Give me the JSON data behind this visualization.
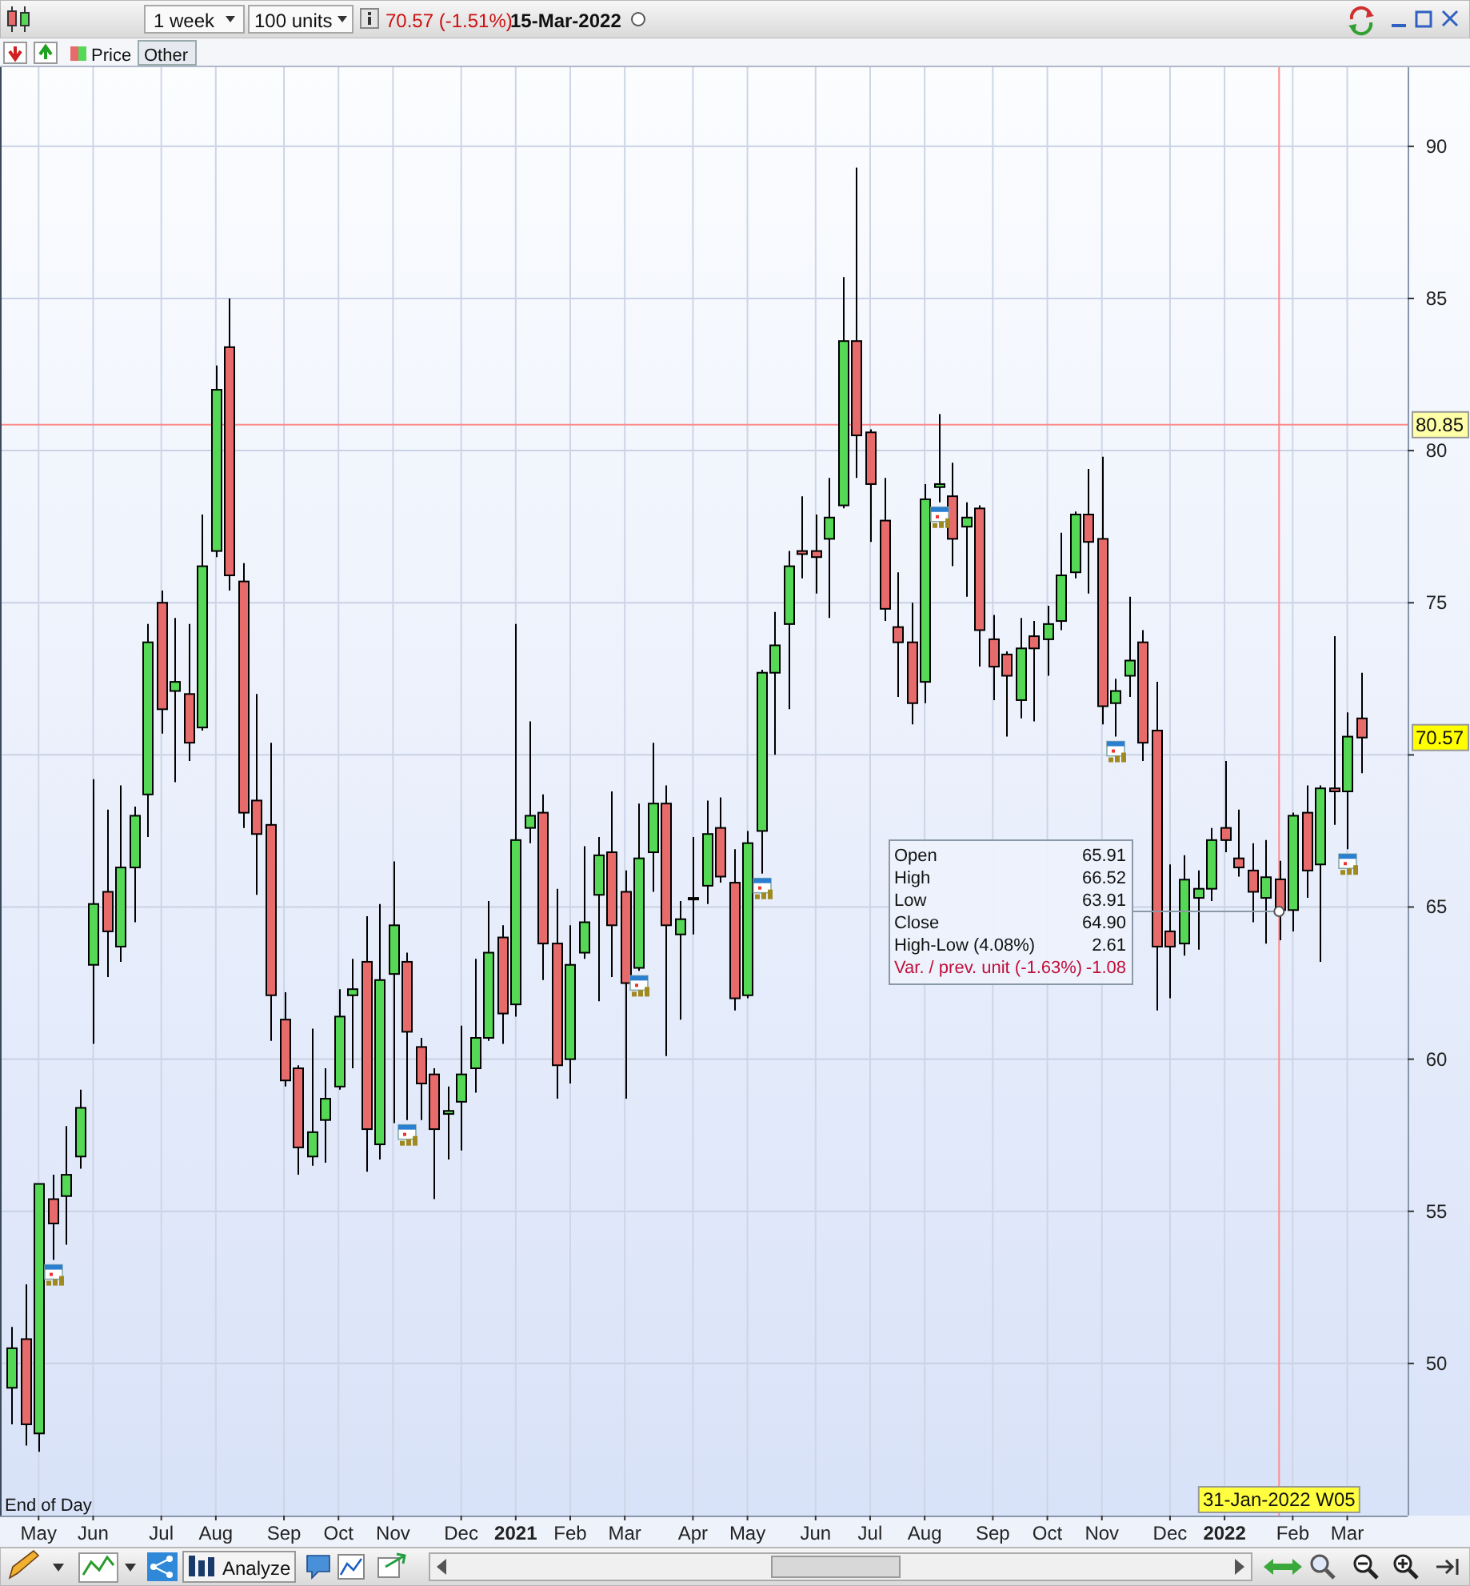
{
  "chart_data": {
    "type": "candlestick",
    "x": [
      "2020-04-20",
      "2020-04-27",
      "2020-05-04",
      "2020-05-11",
      "2020-05-18",
      "2020-05-25",
      "2020-06-01",
      "2020-06-08",
      "2020-06-15",
      "2020-06-22",
      "2020-06-29",
      "2020-07-06",
      "2020-07-13",
      "2020-07-20",
      "2020-07-27",
      "2020-08-03",
      "2020-08-10",
      "2020-08-17",
      "2020-08-24",
      "2020-08-31",
      "2020-09-07",
      "2020-09-14",
      "2020-09-21",
      "2020-09-28",
      "2020-10-05",
      "2020-10-12",
      "2020-10-19",
      "2020-10-26",
      "2020-11-02",
      "2020-11-09",
      "2020-11-16",
      "2020-11-23",
      "2020-11-30",
      "2020-12-07",
      "2020-12-14",
      "2020-12-21",
      "2020-12-28",
      "2021-01-04",
      "2021-01-11",
      "2021-01-18",
      "2021-01-25",
      "2021-02-01",
      "2021-02-08",
      "2021-02-15",
      "2021-02-22",
      "2021-03-01",
      "2021-03-08",
      "2021-03-15",
      "2021-03-22",
      "2021-03-29",
      "2021-04-05",
      "2021-04-12",
      "2021-04-19",
      "2021-04-26",
      "2021-05-03",
      "2021-05-10",
      "2021-05-17",
      "2021-05-24",
      "2021-05-31",
      "2021-06-07",
      "2021-06-14",
      "2021-06-21",
      "2021-06-28",
      "2021-07-05",
      "2021-07-12",
      "2021-07-19",
      "2021-07-26",
      "2021-08-02",
      "2021-08-09",
      "2021-08-16",
      "2021-08-23",
      "2021-08-30",
      "2021-09-06",
      "2021-09-13",
      "2021-09-20",
      "2021-09-27",
      "2021-10-04",
      "2021-10-11",
      "2021-10-18",
      "2021-10-25",
      "2021-11-01",
      "2021-11-08",
      "2021-11-15",
      "2021-11-22",
      "2021-11-29",
      "2021-12-06",
      "2021-12-13",
      "2021-12-20",
      "2021-12-27",
      "2022-01-03",
      "2022-01-10",
      "2022-01-17",
      "2022-01-24",
      "2022-01-31",
      "2022-02-07",
      "2022-02-14",
      "2022-02-21",
      "2022-02-28",
      "2022-03-07",
      "2022-03-14"
    ],
    "ohlc": [
      [
        49.2,
        51.2,
        48.0,
        50.5
      ],
      [
        50.8,
        52.6,
        47.3,
        48.0
      ],
      [
        47.7,
        55.9,
        47.1,
        55.9
      ],
      [
        55.4,
        56.2,
        53.4,
        54.6
      ],
      [
        55.5,
        57.8,
        53.9,
        56.2
      ],
      [
        56.8,
        59.0,
        56.4,
        58.4
      ],
      [
        63.1,
        69.2,
        60.5,
        65.1
      ],
      [
        65.5,
        68.2,
        62.7,
        64.2
      ],
      [
        63.7,
        69.0,
        63.2,
        66.3
      ],
      [
        66.3,
        68.3,
        64.5,
        68.0
      ],
      [
        68.7,
        74.3,
        67.3,
        73.7
      ],
      [
        75.0,
        75.4,
        70.7,
        71.5
      ],
      [
        72.1,
        74.5,
        69.1,
        72.4
      ],
      [
        72.0,
        74.3,
        69.8,
        70.4
      ],
      [
        70.9,
        77.9,
        70.8,
        76.2
      ],
      [
        76.7,
        82.8,
        76.5,
        82.0
      ],
      [
        83.4,
        85.0,
        75.4,
        75.9
      ],
      [
        75.7,
        76.3,
        67.6,
        68.1
      ],
      [
        68.5,
        72.0,
        65.4,
        67.4
      ],
      [
        67.7,
        70.4,
        60.6,
        62.1
      ],
      [
        61.3,
        62.2,
        59.1,
        59.3
      ],
      [
        59.7,
        59.8,
        56.2,
        57.1
      ],
      [
        56.8,
        61.0,
        56.5,
        57.6
      ],
      [
        58.0,
        59.7,
        56.6,
        58.7
      ],
      [
        59.1,
        62.3,
        59.0,
        61.4
      ],
      [
        62.1,
        63.3,
        59.7,
        62.3
      ],
      [
        63.2,
        64.7,
        56.3,
        57.7
      ],
      [
        57.2,
        65.1,
        56.7,
        62.6
      ],
      [
        62.8,
        66.5,
        57.9,
        64.4
      ],
      [
        63.2,
        63.5,
        58.0,
        60.9
      ],
      [
        60.4,
        60.7,
        58.0,
        59.2
      ],
      [
        59.5,
        59.7,
        55.4,
        57.7
      ],
      [
        58.2,
        59.1,
        56.7,
        58.3
      ],
      [
        58.6,
        61.1,
        57.0,
        59.5
      ],
      [
        59.7,
        63.3,
        58.9,
        60.7
      ],
      [
        60.7,
        65.2,
        60.6,
        63.5
      ],
      [
        64.0,
        64.4,
        60.5,
        61.5
      ],
      [
        61.8,
        74.3,
        61.4,
        67.2
      ],
      [
        67.6,
        71.1,
        67.1,
        68.0
      ],
      [
        68.1,
        68.7,
        62.6,
        63.8
      ],
      [
        63.8,
        65.6,
        58.7,
        59.8
      ],
      [
        60.0,
        64.4,
        59.2,
        63.1
      ],
      [
        63.5,
        67.0,
        63.3,
        64.5
      ],
      [
        65.4,
        67.3,
        61.9,
        66.7
      ],
      [
        66.8,
        68.8,
        62.7,
        64.4
      ],
      [
        65.5,
        66.2,
        58.7,
        62.5
      ],
      [
        63.0,
        68.4,
        62.9,
        66.6
      ],
      [
        66.8,
        70.4,
        65.5,
        68.4
      ],
      [
        68.4,
        69.0,
        60.1,
        64.4
      ],
      [
        64.1,
        65.2,
        61.3,
        64.6
      ],
      [
        65.3,
        67.3,
        64.1,
        65.3
      ],
      [
        65.7,
        68.5,
        65.1,
        67.4
      ],
      [
        67.6,
        68.6,
        65.8,
        66.0
      ],
      [
        65.8,
        66.9,
        61.6,
        62.0
      ],
      [
        62.1,
        67.5,
        62.0,
        67.1
      ],
      [
        67.5,
        72.8,
        66.1,
        72.7
      ],
      [
        72.7,
        74.7,
        70.0,
        73.6
      ],
      [
        74.3,
        76.7,
        71.5,
        76.2
      ],
      [
        76.7,
        78.5,
        75.8,
        76.6
      ],
      [
        76.7,
        77.9,
        75.3,
        76.5
      ],
      [
        77.1,
        79.1,
        74.5,
        77.8
      ],
      [
        78.2,
        85.7,
        78.1,
        83.6
      ],
      [
        83.6,
        89.3,
        79.1,
        80.5
      ],
      [
        80.6,
        80.7,
        77.0,
        78.9
      ],
      [
        77.7,
        79.1,
        74.4,
        74.8
      ],
      [
        74.2,
        76.0,
        71.9,
        73.7
      ],
      [
        73.7,
        75.0,
        71.0,
        71.7
      ],
      [
        72.4,
        78.9,
        71.7,
        78.4
      ],
      [
        78.8,
        81.2,
        78.3,
        78.9
      ],
      [
        78.5,
        79.6,
        76.2,
        77.1
      ],
      [
        77.5,
        78.3,
        75.2,
        77.8
      ],
      [
        78.1,
        78.2,
        72.9,
        74.1
      ],
      [
        73.8,
        74.6,
        71.8,
        72.9
      ],
      [
        73.3,
        73.4,
        70.6,
        72.6
      ],
      [
        71.8,
        74.5,
        71.2,
        73.5
      ],
      [
        73.9,
        74.4,
        71.1,
        73.5
      ],
      [
        73.8,
        74.9,
        72.6,
        74.3
      ],
      [
        74.4,
        77.3,
        74.1,
        75.9
      ],
      [
        76.0,
        78.0,
        75.8,
        77.9
      ],
      [
        77.9,
        79.4,
        75.3,
        77.0
      ],
      [
        77.1,
        79.8,
        71.0,
        71.6
      ],
      [
        71.7,
        72.5,
        70.6,
        72.1
      ],
      [
        72.6,
        75.2,
        71.9,
        73.1
      ],
      [
        73.7,
        74.1,
        69.8,
        70.4
      ],
      [
        70.8,
        72.4,
        61.6,
        63.7
      ],
      [
        64.2,
        66.4,
        62.0,
        63.7
      ],
      [
        63.8,
        66.7,
        63.4,
        65.9
      ],
      [
        65.3,
        66.2,
        63.6,
        65.6
      ],
      [
        65.6,
        67.6,
        65.2,
        67.2
      ],
      [
        67.6,
        69.8,
        66.8,
        67.2
      ],
      [
        66.6,
        68.2,
        66.0,
        66.3
      ],
      [
        66.2,
        67.1,
        64.5,
        65.5
      ],
      [
        65.3,
        67.2,
        63.8,
        65.98
      ],
      [
        65.91,
        66.52,
        63.91,
        64.9
      ],
      [
        64.9,
        68.1,
        64.2,
        68.0
      ],
      [
        68.1,
        69.0,
        65.3,
        66.2
      ],
      [
        66.4,
        69.0,
        63.2,
        68.9
      ],
      [
        68.9,
        73.9,
        67.7,
        68.8
      ],
      [
        68.8,
        71.4,
        66.9,
        70.6
      ],
      [
        71.2,
        72.7,
        69.4,
        70.57
      ]
    ],
    "xlim": [
      "2020-04-15",
      "2022-04-07"
    ],
    "ylim": [
      45,
      92.6
    ],
    "xticks": [
      {
        "value": "2020-05-04",
        "label": "May"
      },
      {
        "value": "2020-06-01",
        "label": "Jun"
      },
      {
        "value": "2020-07-06",
        "label": "Jul"
      },
      {
        "value": "2020-08-03",
        "label": "Aug"
      },
      {
        "value": "2020-09-07",
        "label": "Sep"
      },
      {
        "value": "2020-10-05",
        "label": "Oct"
      },
      {
        "value": "2020-11-02",
        "label": "Nov"
      },
      {
        "value": "2020-12-07",
        "label": "Dec"
      },
      {
        "value": "2021-01-04",
        "label": "2021"
      },
      {
        "value": "2021-02-01",
        "label": "Feb"
      },
      {
        "value": "2021-03-01",
        "label": "Mar"
      },
      {
        "value": "2021-04-05",
        "label": "Apr"
      },
      {
        "value": "2021-05-03",
        "label": "May"
      },
      {
        "value": "2021-06-07",
        "label": "Jun"
      },
      {
        "value": "2021-07-05",
        "label": "Jul"
      },
      {
        "value": "2021-08-02",
        "label": "Aug"
      },
      {
        "value": "2021-09-06",
        "label": "Sep"
      },
      {
        "value": "2021-10-04",
        "label": "Oct"
      },
      {
        "value": "2021-11-01",
        "label": "Nov"
      },
      {
        "value": "2021-12-06",
        "label": "Dec"
      },
      {
        "value": "2022-01-03",
        "label": "2022"
      },
      {
        "value": "2022-02-07",
        "label": "Feb"
      },
      {
        "value": "2022-03-07",
        "label": "Mar"
      }
    ],
    "yticks": [
      50,
      55,
      60,
      65,
      {
        "value": 70,
        "label": null
      },
      75,
      80,
      85,
      90
    ],
    "grid": true,
    "ref_lines": [
      {
        "axis": "y",
        "value": 80.85,
        "label": "80.85",
        "color": "#ff8c8c"
      },
      {
        "axis": "x",
        "value": "2022-01-31",
        "label": "31-Jan-2022 W05",
        "color": "#ff8c8c"
      }
    ],
    "annotations": [
      "1 week",
      "100 units",
      "70.57 (-1.51%)",
      "15-Mar-2022",
      "Price",
      "Other",
      "End of Day",
      "Analyze",
      "Open",
      "65.91",
      "High",
      "66.52",
      "Low",
      "63.91",
      "Close",
      {
        "text": "64.90",
        "x": "2022-01-31",
        "y": 64.9
      },
      "High-Low (4.08%)",
      "2.61",
      "Var. / prev. unit (-1.63%)",
      "-1.08",
      {
        "text": "70.57",
        "y": 70.57
      }
    ]
  }
}
